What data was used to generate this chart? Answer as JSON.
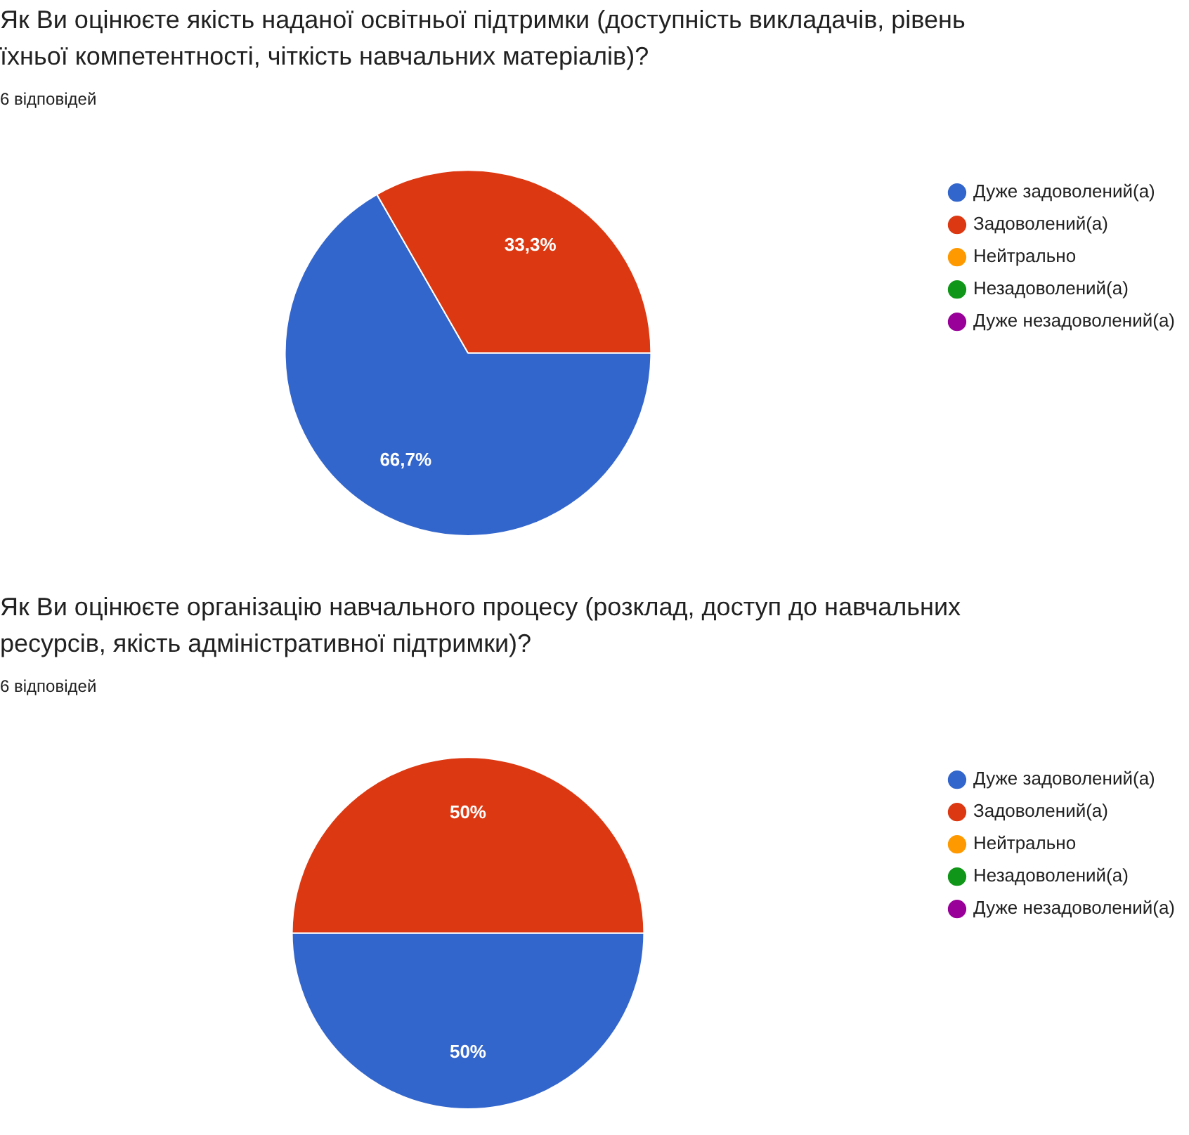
{
  "chart_data": [
    {
      "type": "pie",
      "title": "Як Ви оцінюєте якість наданої освітньої підтримки (доступність викладачів, рівень їхньої компетентності, чіткість навчальних матеріалів)?",
      "subtitle": "6 відповідей",
      "categories": [
        "Дуже задоволений(а)",
        "Задоволений(а)",
        "Нейтрально",
        "Незадоволений(а)",
        "Дуже незадоволений(а)"
      ],
      "values": [
        66.7,
        33.3,
        0,
        0,
        0
      ],
      "colors": [
        "#3366cc",
        "#dc3912",
        "#ff9900",
        "#109618",
        "#990099"
      ],
      "value_labels": [
        "66,7%",
        "33,3%",
        null,
        null,
        null
      ],
      "legend": "right"
    },
    {
      "type": "pie",
      "title": "Як Ви оцінюєте організацію навчального процесу (розклад, доступ до навчальних ресурсів, якість адміністративної підтримки)?",
      "subtitle": "6 відповідей",
      "categories": [
        "Дуже задоволений(а)",
        "Задоволений(а)",
        "Нейтрально",
        "Незадоволений(а)",
        "Дуже незадоволений(а)"
      ],
      "values": [
        50,
        50,
        0,
        0,
        0
      ],
      "colors": [
        "#3366cc",
        "#dc3912",
        "#ff9900",
        "#109618",
        "#990099"
      ],
      "value_labels": [
        "50%",
        "50%",
        null,
        null,
        null
      ],
      "legend": "right"
    }
  ]
}
